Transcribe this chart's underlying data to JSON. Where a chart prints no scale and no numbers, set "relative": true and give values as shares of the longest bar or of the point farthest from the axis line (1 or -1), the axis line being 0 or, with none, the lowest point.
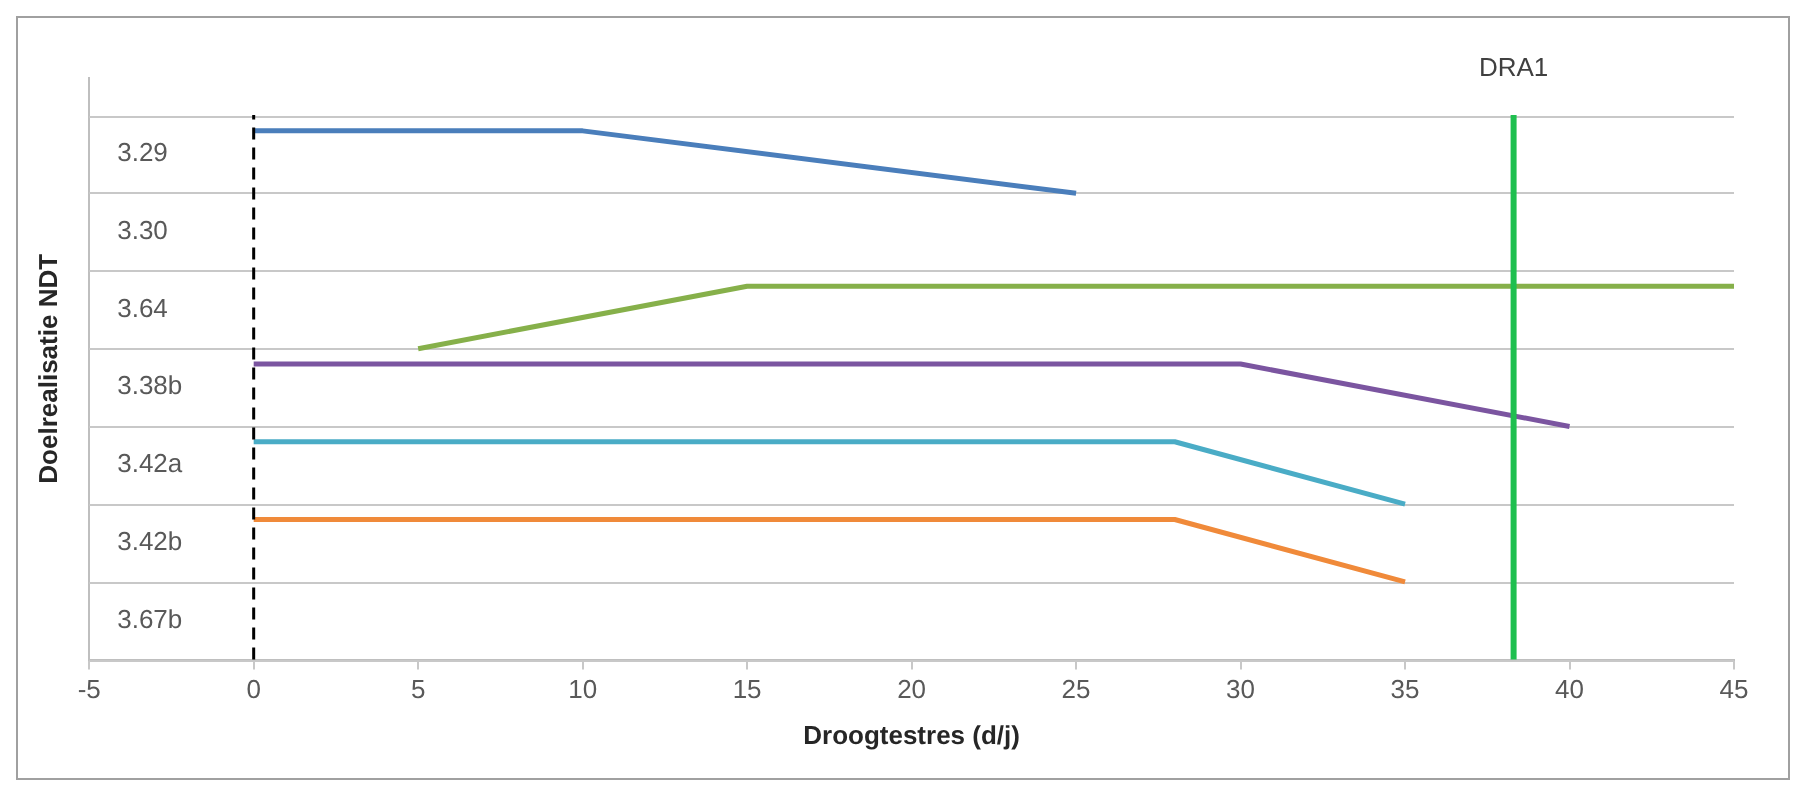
{
  "chart_data": {
    "type": "line",
    "xlabel": "Droogtestres (d/j)",
    "ylabel": "Doelrealisatie NDT",
    "xlim": [
      -5,
      45
    ],
    "xticks": [
      -5,
      0,
      5,
      10,
      15,
      20,
      25,
      30,
      35,
      40,
      45
    ],
    "relative": true,
    "annotations": [
      "3.29",
      "3.30",
      "3.64",
      "3.38b",
      "3.42a",
      "3.42b",
      "3.67b"
    ],
    "grid": "y",
    "marker": "none",
    "line_style": "solid",
    "series": [
      {
        "color": "#4a7ebb",
        "x": [
          0,
          10,
          25
        ],
        "values": [
          1,
          1,
          0.882
        ]
      },
      {
        "color": "#86b04a",
        "x": [
          5,
          15,
          45
        ],
        "values": [
          0.588,
          0.706,
          0.706
        ]
      },
      {
        "color": "#7b55a0",
        "x": [
          0,
          30,
          40
        ],
        "values": [
          0.559,
          0.559,
          0.441
        ]
      },
      {
        "color": "#4aacc6",
        "x": [
          0,
          28,
          35
        ],
        "values": [
          0.412,
          0.412,
          0.294
        ]
      },
      {
        "color": "#f08a3a",
        "x": [
          0,
          28,
          35
        ],
        "values": [
          0.265,
          0.265,
          0.147
        ]
      }
    ],
    "ref_lines": [
      {
        "axis": "x",
        "value": 0,
        "label": null,
        "color": "#000000",
        "line_style": "dashed"
      },
      {
        "axis": "x",
        "value": 38.3,
        "label": "DRA1",
        "color": "#1fbf4f",
        "line_style": "solid"
      }
    ]
  }
}
